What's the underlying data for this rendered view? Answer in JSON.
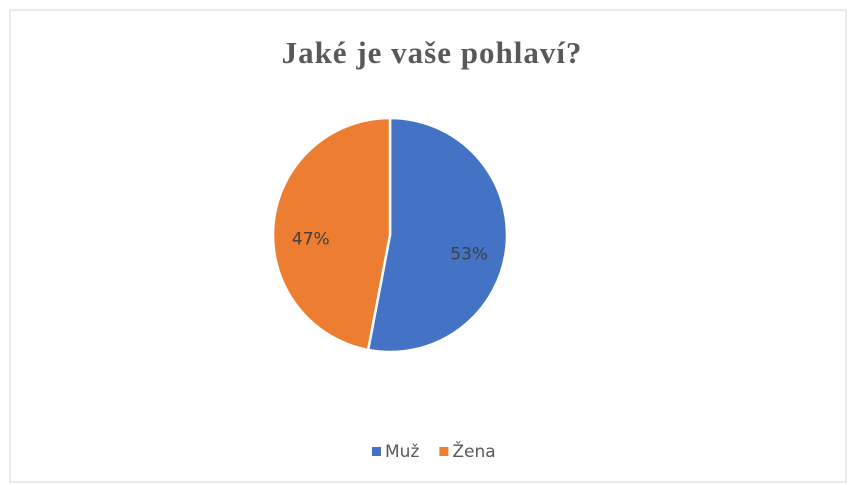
{
  "chart_data": {
    "type": "pie",
    "title": "Jaké je vaše pohlaví?",
    "categories": [
      "Muž",
      "Žena"
    ],
    "values": [
      53,
      47
    ],
    "value_labels": [
      "53%",
      "47%"
    ],
    "colors": [
      "#4472c4",
      "#ed7d31"
    ],
    "legend": "bottom"
  }
}
